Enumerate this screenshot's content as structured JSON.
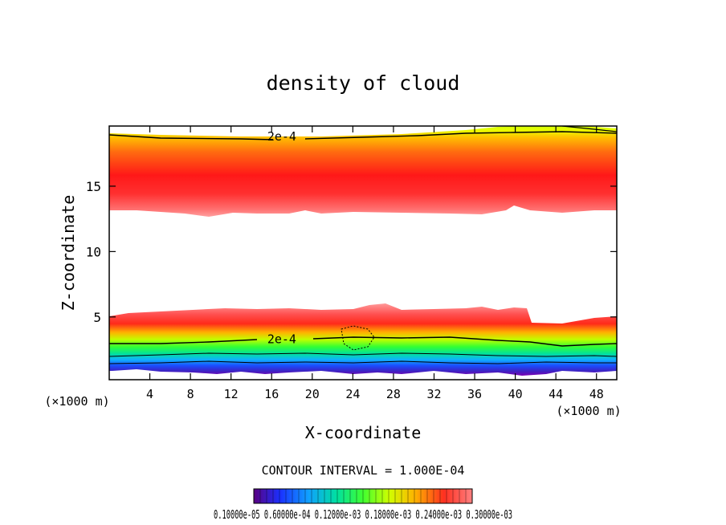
{
  "chart_data": {
    "type": "heatmap",
    "title": "density of cloud",
    "xlabel": "X-coordinate",
    "ylabel": "Z-coordinate",
    "x_unit": "(×1000 m)",
    "z_unit": "(×1000 m)",
    "xlim": [
      0,
      50
    ],
    "ylim": [
      0.2,
      19.6
    ],
    "x_ticks": [
      4,
      8,
      12,
      16,
      20,
      24,
      28,
      32,
      36,
      40,
      44,
      48
    ],
    "y_ticks": [
      5,
      10,
      15
    ],
    "contour_interval_label": "CONTOUR INTERVAL = 1.000E-04",
    "contour_labels": [
      {
        "text": "2e-4",
        "x": 17,
        "z": 18.8
      },
      {
        "text": "2e-4",
        "x": 17,
        "z": 3.3
      }
    ],
    "colorbar_tick_text": "0.10000e-05 0.60000e-04 0.12000e-03 0.18000e-03 0.24000e-03 0.30000e-03",
    "colorbar_range": [
      1e-06,
      0.00035
    ],
    "colors": {
      "upper_band_peak": "#ff1a1a",
      "upper_band_edge": "#bfff00",
      "lower_band_top": "#ff7777",
      "lower_band_green": "#33ff33",
      "lower_band_blue": "#1a4dff",
      "lower_band_bottom": "#7a00b3"
    }
  }
}
